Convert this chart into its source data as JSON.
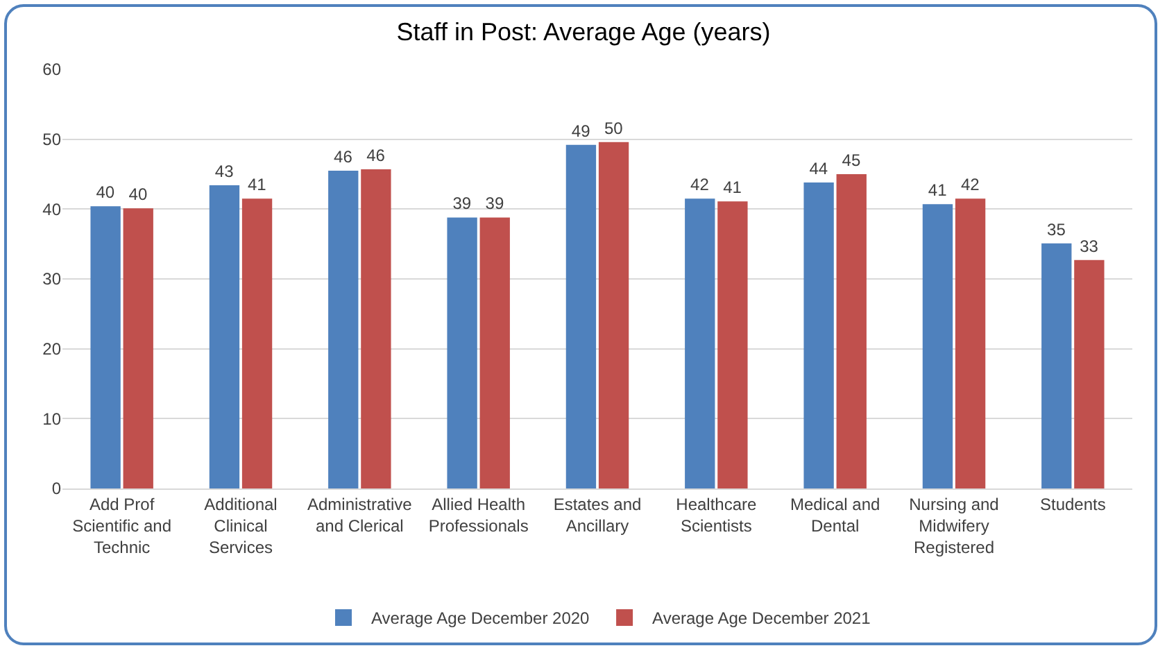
{
  "chart_data": {
    "type": "bar",
    "title": "Staff in Post: Average Age (years)",
    "categories": [
      "Add Prof Scientific and Technic",
      "Additional Clinical Services",
      "Administrative and Clerical",
      "Allied Health Professionals",
      "Estates and Ancillary",
      "Healthcare Scientists",
      "Medical and Dental",
      "Nursing and Midwifery Registered",
      "Students"
    ],
    "series": [
      {
        "name": "Average Age December 2020",
        "color": "#4f81bd",
        "values": [
          40.4,
          43.4,
          45.5,
          38.8,
          49.2,
          41.5,
          43.8,
          40.7,
          35.1
        ],
        "value_labels": [
          "40",
          "43",
          "46",
          "39",
          "49",
          "42",
          "44",
          "41",
          "35"
        ]
      },
      {
        "name": "Average Age December 2021",
        "color": "#c0504d",
        "values": [
          40.1,
          41.5,
          45.7,
          38.8,
          49.6,
          41.1,
          45.0,
          41.5,
          32.7
        ],
        "value_labels": [
          "40",
          "41",
          "46",
          "39",
          "50",
          "41",
          "45",
          "42",
          "33"
        ]
      }
    ],
    "ylim": [
      0,
      60
    ],
    "yticks": [
      0,
      10,
      20,
      30,
      40,
      50,
      60
    ],
    "grid": "y",
    "legend": "bottom"
  }
}
